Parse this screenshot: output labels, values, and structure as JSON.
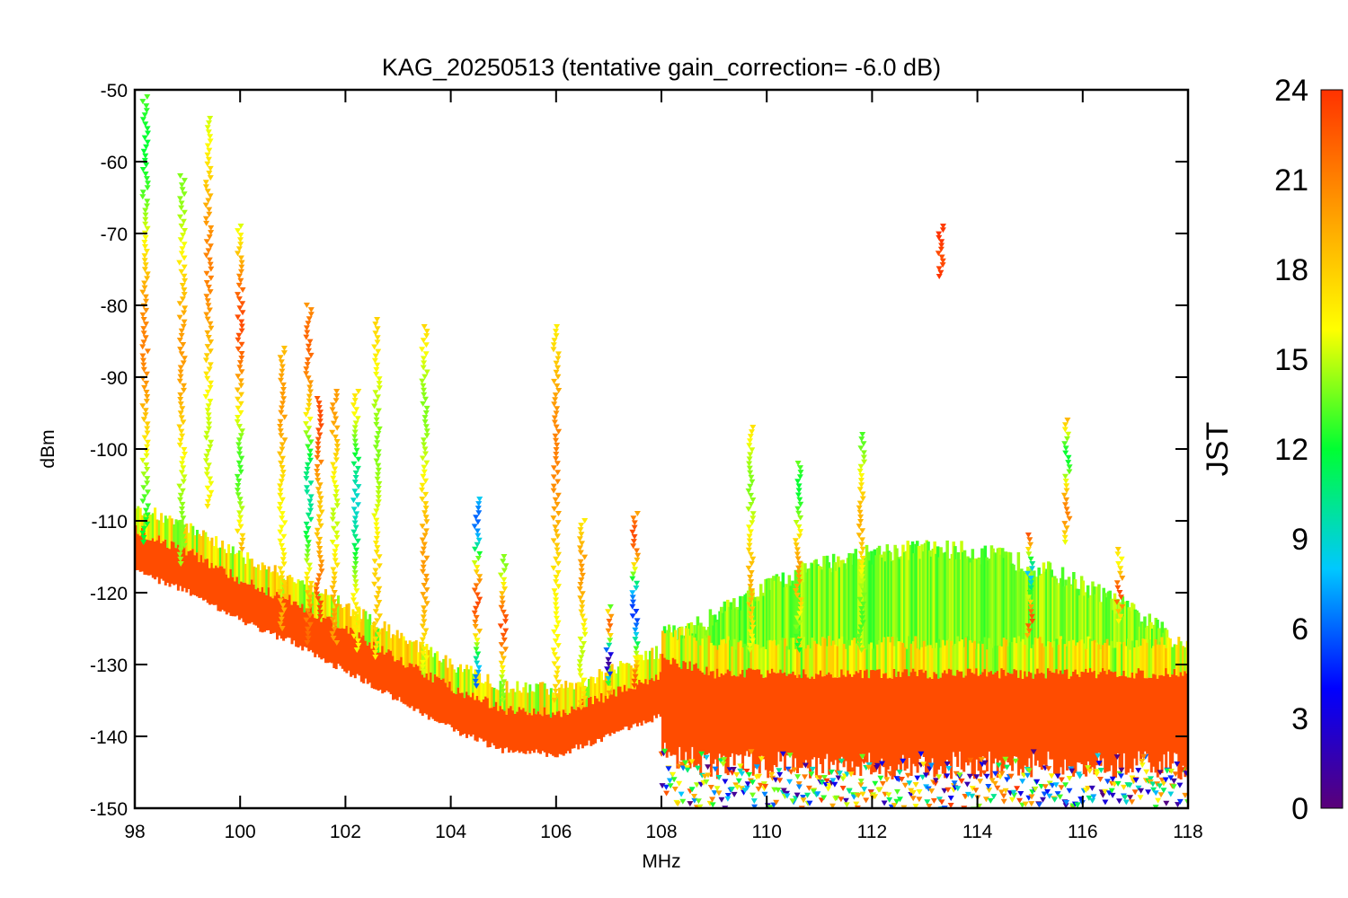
{
  "chart_data": {
    "type": "scatter",
    "title": "KAG_20250513 (tentative gain_correction= -6.0 dB)",
    "xlabel": "MHz",
    "ylabel": "dBm",
    "xlim": [
      98,
      118
    ],
    "ylim": [
      -150,
      -50
    ],
    "x_ticks": [
      98,
      100,
      102,
      104,
      106,
      108,
      110,
      112,
      114,
      116,
      118
    ],
    "y_ticks": [
      -50,
      -60,
      -70,
      -80,
      -90,
      -100,
      -110,
      -120,
      -130,
      -140,
      -150
    ],
    "marker": "triangle-down",
    "grid": false,
    "colorbar": {
      "label": "JST",
      "range": [
        0,
        24
      ],
      "ticks": [
        0,
        3,
        6,
        9,
        12,
        15,
        18,
        21,
        24
      ],
      "colormap": "rainbow (purple-blue-cyan-green-yellow-orange-red)",
      "stops": [
        "#5a0078",
        "#0000ff",
        "#00c8ff",
        "#00ff32",
        "#ffff00",
        "#ff9b00",
        "#ff3200"
      ]
    },
    "noise_floor": [
      {
        "x": 98,
        "y": -114
      },
      {
        "x": 99,
        "y": -117
      },
      {
        "x": 100,
        "y": -121
      },
      {
        "x": 101,
        "y": -124
      },
      {
        "x": 102,
        "y": -128
      },
      {
        "x": 103,
        "y": -132
      },
      {
        "x": 104,
        "y": -136
      },
      {
        "x": 105,
        "y": -139
      },
      {
        "x": 106,
        "y": -139.5
      },
      {
        "x": 107,
        "y": -137
      },
      {
        "x": 108,
        "y": -134
      },
      {
        "x": 109,
        "y": -136
      },
      {
        "x": 110,
        "y": -136
      },
      {
        "x": 112,
        "y": -136
      },
      {
        "x": 114,
        "y": -136
      },
      {
        "x": 116,
        "y": -136
      },
      {
        "x": 118,
        "y": -136
      }
    ],
    "signals": [
      {
        "x": 98.2,
        "top": -51,
        "bottom": -113,
        "jst_band": [
          12,
          21
        ]
      },
      {
        "x": 98.9,
        "top": -62,
        "bottom": -116,
        "jst_band": [
          14,
          20
        ]
      },
      {
        "x": 99.4,
        "top": -54,
        "bottom": -108,
        "jst_band": [
          15,
          21
        ]
      },
      {
        "x": 100.0,
        "top": -69,
        "bottom": -114,
        "jst_band": [
          13,
          23
        ]
      },
      {
        "x": 100.8,
        "top": -86,
        "bottom": -125,
        "jst_band": [
          16,
          20
        ]
      },
      {
        "x": 101.3,
        "top": -80,
        "bottom": -127,
        "jst_band": [
          10,
          22
        ]
      },
      {
        "x": 101.5,
        "top": -93,
        "bottom": -124,
        "jst_band": [
          18,
          23
        ]
      },
      {
        "x": 101.8,
        "top": -92,
        "bottom": -127,
        "jst_band": [
          15,
          20
        ]
      },
      {
        "x": 102.2,
        "top": -92,
        "bottom": -128,
        "jst_band": [
          9,
          17
        ]
      },
      {
        "x": 102.6,
        "top": -82,
        "bottom": -129,
        "jst_band": [
          14,
          18
        ]
      },
      {
        "x": 103.5,
        "top": -83,
        "bottom": -131,
        "jst_band": [
          14,
          20
        ]
      },
      {
        "x": 104.5,
        "top": -107,
        "bottom": -133,
        "jst_band": [
          6,
          23
        ]
      },
      {
        "x": 105.0,
        "top": -115,
        "bottom": -135,
        "jst_band": [
          14,
          23
        ]
      },
      {
        "x": 106.0,
        "top": -83,
        "bottom": -135,
        "jst_band": [
          16,
          21
        ]
      },
      {
        "x": 106.5,
        "top": -110,
        "bottom": -136,
        "jst_band": [
          15,
          20
        ]
      },
      {
        "x": 107.0,
        "top": -122,
        "bottom": -134,
        "jst_band": [
          1,
          22
        ]
      },
      {
        "x": 107.5,
        "top": -109,
        "bottom": -133,
        "jst_band": [
          5,
          23
        ]
      },
      {
        "x": 109.7,
        "top": -97,
        "bottom": -128,
        "jst_band": [
          14,
          19
        ]
      },
      {
        "x": 110.6,
        "top": -102,
        "bottom": -128,
        "jst_band": [
          12,
          20
        ]
      },
      {
        "x": 111.8,
        "top": -98,
        "bottom": -128,
        "jst_band": [
          13,
          19
        ]
      },
      {
        "x": 113.3,
        "top": -69,
        "bottom": -76,
        "jst_band": [
          23,
          24
        ]
      },
      {
        "x": 115.0,
        "top": -112,
        "bottom": -126,
        "jst_band": [
          8,
          23
        ]
      },
      {
        "x": 115.7,
        "top": -96,
        "bottom": -113,
        "jst_band": [
          12,
          21
        ]
      },
      {
        "x": 116.7,
        "top": -114,
        "bottom": -124,
        "jst_band": [
          16,
          23
        ]
      }
    ],
    "broadband_hump": {
      "x_range": [
        108,
        117.6
      ],
      "peak_x": 113,
      "peak_y": -114,
      "edge_y": -126,
      "jst": 14
    }
  }
}
